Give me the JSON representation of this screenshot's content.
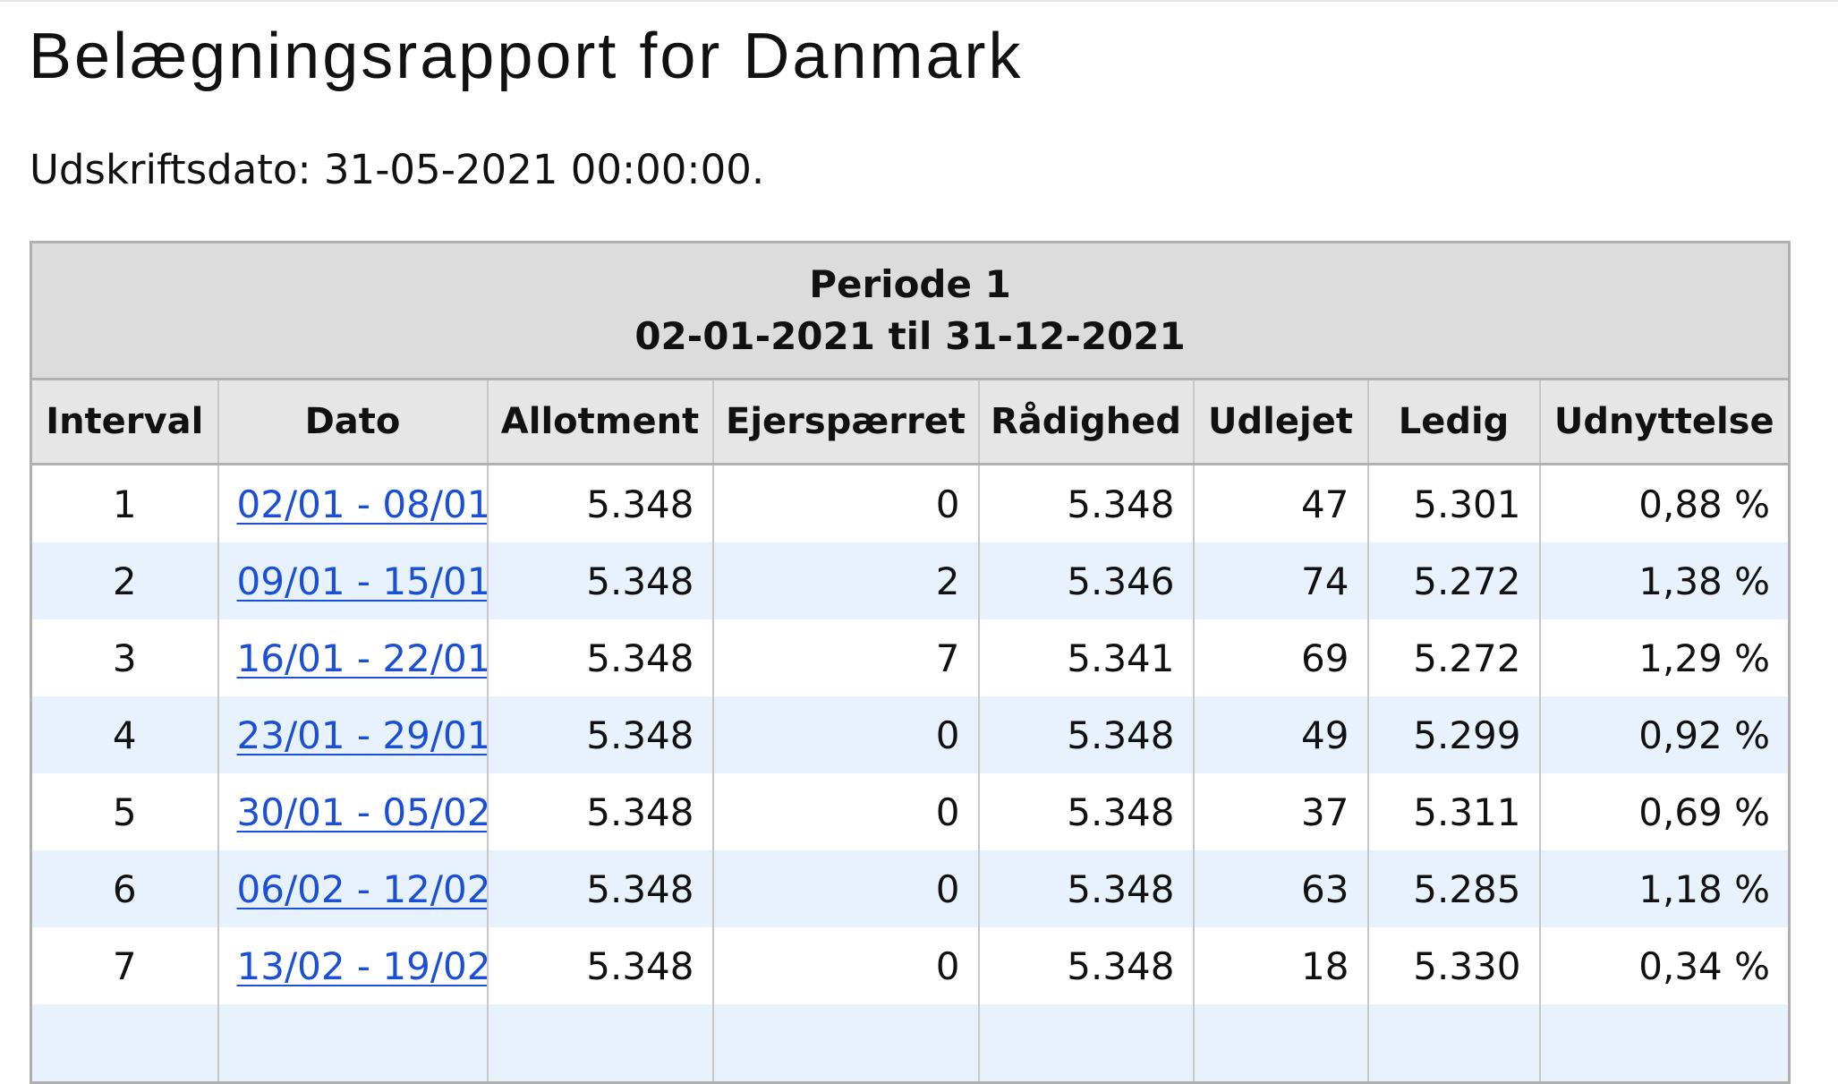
{
  "title": "Belægningsrapport for Danmark",
  "print_date": "Udskriftsdato: 31-05-2021 00:00:00.",
  "period": {
    "name": "Periode 1",
    "range": "02-01-2021 til 31-12-2021"
  },
  "columns": [
    "Interval",
    "Dato",
    "Allotment",
    "Ejerspærret",
    "Rådighed",
    "Udlejet",
    "Ledig",
    "Udnyttelse"
  ],
  "rows": [
    {
      "interval": "1",
      "dato": "02/01 - 08/01",
      "allotment": "5.348",
      "ejerspaerret": "0",
      "raadighed": "5.348",
      "udlejet": "47",
      "ledig": "5.301",
      "udnyttelse": "0,88 %"
    },
    {
      "interval": "2",
      "dato": "09/01 - 15/01",
      "allotment": "5.348",
      "ejerspaerret": "2",
      "raadighed": "5.346",
      "udlejet": "74",
      "ledig": "5.272",
      "udnyttelse": "1,38 %"
    },
    {
      "interval": "3",
      "dato": "16/01 - 22/01",
      "allotment": "5.348",
      "ejerspaerret": "7",
      "raadighed": "5.341",
      "udlejet": "69",
      "ledig": "5.272",
      "udnyttelse": "1,29 %"
    },
    {
      "interval": "4",
      "dato": "23/01 - 29/01",
      "allotment": "5.348",
      "ejerspaerret": "0",
      "raadighed": "5.348",
      "udlejet": "49",
      "ledig": "5.299",
      "udnyttelse": "0,92 %"
    },
    {
      "interval": "5",
      "dato": "30/01 - 05/02",
      "allotment": "5.348",
      "ejerspaerret": "0",
      "raadighed": "5.348",
      "udlejet": "37",
      "ledig": "5.311",
      "udnyttelse": "0,69 %"
    },
    {
      "interval": "6",
      "dato": "06/02 - 12/02",
      "allotment": "5.348",
      "ejerspaerret": "0",
      "raadighed": "5.348",
      "udlejet": "63",
      "ledig": "5.285",
      "udnyttelse": "1,18 %"
    },
    {
      "interval": "7",
      "dato": "13/02 - 19/02",
      "allotment": "5.348",
      "ejerspaerret": "0",
      "raadighed": "5.348",
      "udlejet": "18",
      "ledig": "5.330",
      "udnyttelse": "0,34 %"
    }
  ],
  "colors": {
    "link": "#1a4fd6",
    "header_bg": "#dcdcdc",
    "row_alt_bg": "#e8f2fc"
  }
}
